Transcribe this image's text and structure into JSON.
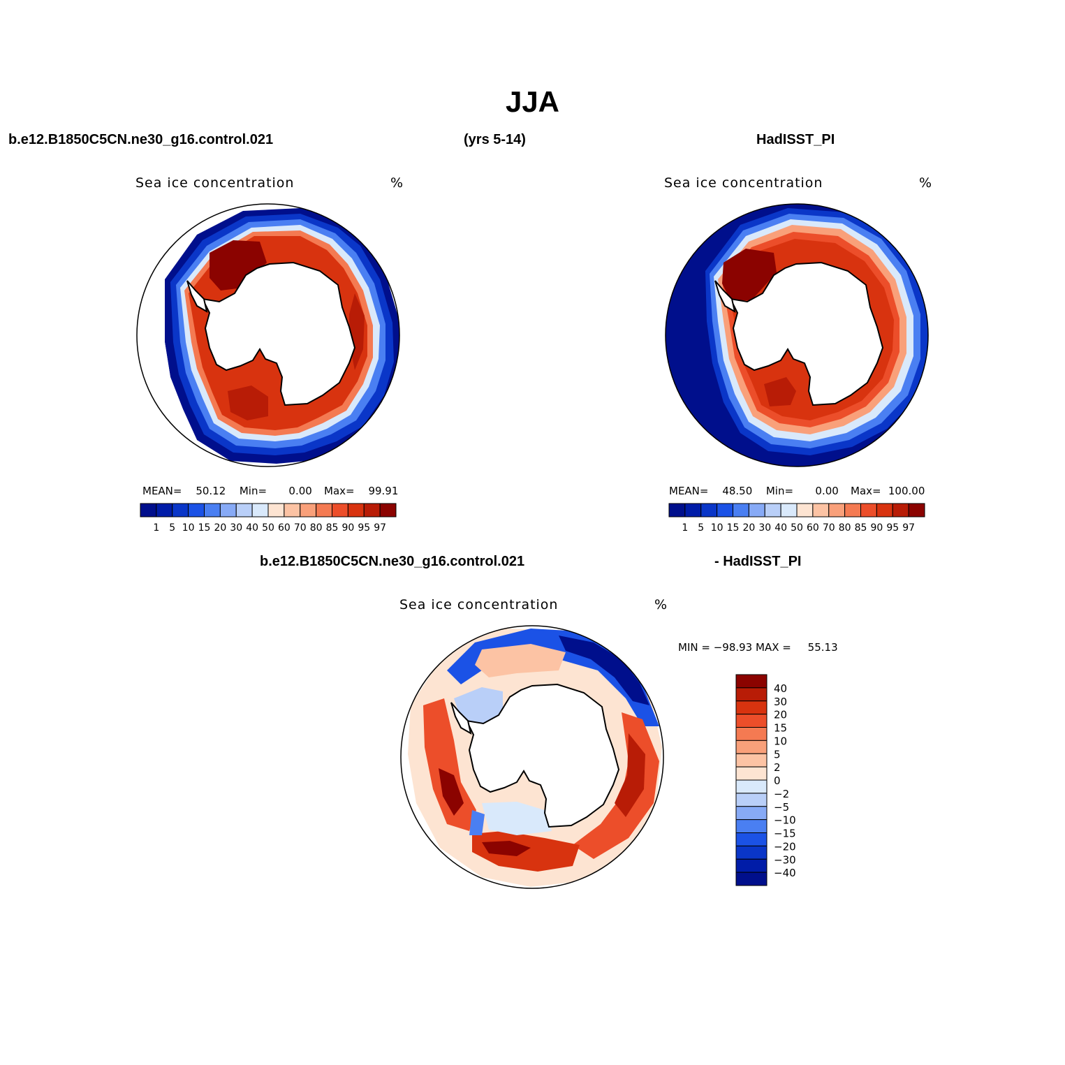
{
  "title": "JJA",
  "header": {
    "case": "b.e12.B1850C5CN.ne30_g16.control.021",
    "years": "(yrs 5-14)",
    "obs": "HadISST_PI",
    "diff_case": "b.e12.B1850C5CN.ne30_g16.control.021",
    "diff_obs": "- HadISST_PI"
  },
  "panels": [
    {
      "variable": "Sea ice concentration",
      "units": "%",
      "stats": {
        "mean_label": "MEAN=",
        "mean": "50.12",
        "min_label": "Min=",
        "min": "0.00",
        "max_label": "Max=",
        "max": "99.91"
      }
    },
    {
      "variable": "Sea ice concentration",
      "units": "%",
      "stats": {
        "mean_label": "MEAN=",
        "mean": "48.50",
        "min_label": "Min=",
        "min": "0.00",
        "max_label": "Max=",
        "max": "100.00"
      }
    },
    {
      "variable": "Sea ice concentration",
      "units": "%",
      "stats": {
        "min_label": "MIN =",
        "min": "−98.93",
        "max_label": "MAX =",
        "max": "55.13"
      }
    }
  ],
  "colorbar_abs": {
    "labels": [
      "1",
      "5",
      "10",
      "15",
      "20",
      "30",
      "40",
      "50",
      "60",
      "70",
      "80",
      "85",
      "90",
      "95",
      "97"
    ],
    "colors": [
      "#000f8c",
      "#001ca8",
      "#0a36c8",
      "#1b52e6",
      "#4a7ff2",
      "#87aaf6",
      "#b9cff8",
      "#d9e9fb",
      "#fde4d2",
      "#fcc3a4",
      "#f9a07a",
      "#f47a52",
      "#ec4e2a",
      "#d8330f",
      "#b81c06",
      "#8b0300"
    ]
  },
  "colorbar_diff": {
    "labels": [
      "40",
      "30",
      "20",
      "15",
      "10",
      "5",
      "2",
      "0",
      "−2",
      "−5",
      "−10",
      "−15",
      "−20",
      "−30",
      "−40"
    ],
    "colors": [
      "#8b0300",
      "#b81c06",
      "#d8330f",
      "#ec4e2a",
      "#f47a52",
      "#f9a07a",
      "#fcc3a4",
      "#fde4d2",
      "#d9e9fb",
      "#b9cff8",
      "#87aaf6",
      "#4a7ff2",
      "#1b52e6",
      "#0a36c8",
      "#001ca8",
      "#000f8c"
    ]
  }
}
